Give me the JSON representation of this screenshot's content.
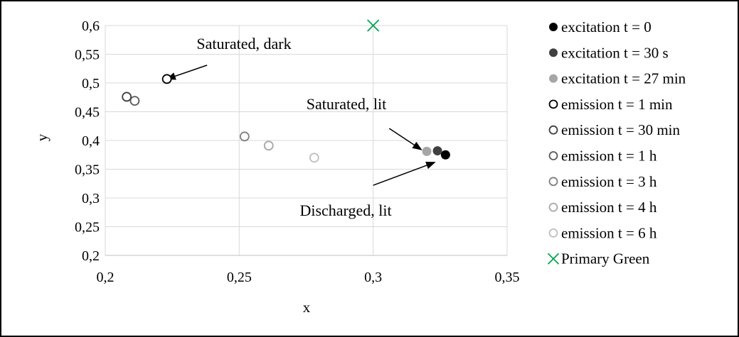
{
  "chart_data": {
    "type": "scatter",
    "title": "",
    "xlabel": "x",
    "ylabel": "y",
    "xlim": [
      0.2,
      0.35
    ],
    "ylim": [
      0.2,
      0.6
    ],
    "x_ticks": [
      "0,2",
      "0,25",
      "0,3",
      "0,35"
    ],
    "y_ticks": [
      "0,2",
      "0,25",
      "0,3",
      "0,35",
      "0,4",
      "0,45",
      "0,5",
      "0,55",
      "0,6"
    ],
    "grid": true,
    "legend_position": "right",
    "series": [
      {
        "name": "excitation t = 0",
        "marker": "filled-circle",
        "color": "#000000",
        "points": [
          {
            "x": 0.327,
            "y": 0.375
          }
        ]
      },
      {
        "name": "excitation t = 30 s",
        "marker": "filled-circle",
        "color": "#404040",
        "points": [
          {
            "x": 0.324,
            "y": 0.382
          }
        ]
      },
      {
        "name": "excitation t = 27 min",
        "marker": "filled-circle",
        "color": "#a6a6a6",
        "points": [
          {
            "x": 0.32,
            "y": 0.381
          }
        ]
      },
      {
        "name": "emission t = 1 min",
        "marker": "open-circle",
        "color": "#000000",
        "points": [
          {
            "x": 0.223,
            "y": 0.507
          }
        ]
      },
      {
        "name": "emission t = 30 min",
        "marker": "open-circle",
        "color": "#404040",
        "points": [
          {
            "x": 0.208,
            "y": 0.476
          }
        ]
      },
      {
        "name": "emission t = 1 h",
        "marker": "open-circle",
        "color": "#595959",
        "points": [
          {
            "x": 0.211,
            "y": 0.469
          }
        ]
      },
      {
        "name": "emission t = 3 h",
        "marker": "open-circle",
        "color": "#7f7f7f",
        "points": [
          {
            "x": 0.252,
            "y": 0.407
          }
        ]
      },
      {
        "name": "emission t = 4 h",
        "marker": "open-circle",
        "color": "#a6a6a6",
        "points": [
          {
            "x": 0.261,
            "y": 0.391
          }
        ]
      },
      {
        "name": "emission t = 6 h",
        "marker": "open-circle",
        "color": "#bfbfbf",
        "points": [
          {
            "x": 0.278,
            "y": 0.37
          }
        ]
      },
      {
        "name": "Primary Green",
        "marker": "x",
        "color": "#00a651",
        "points": [
          {
            "x": 0.3,
            "y": 0.6
          }
        ]
      }
    ],
    "annotations": [
      {
        "text": "Saturated, dark",
        "target": {
          "x": 0.223,
          "y": 0.507
        },
        "from": {
          "x": 0.238,
          "y": 0.531
        }
      },
      {
        "text": "Saturated, lit",
        "target": {
          "x": 0.318,
          "y": 0.384
        },
        "from": {
          "x": 0.306,
          "y": 0.421
        }
      },
      {
        "text": "Discharged, lit",
        "target": {
          "x": 0.323,
          "y": 0.362
        },
        "from": {
          "x": 0.3,
          "y": 0.322
        }
      }
    ]
  }
}
